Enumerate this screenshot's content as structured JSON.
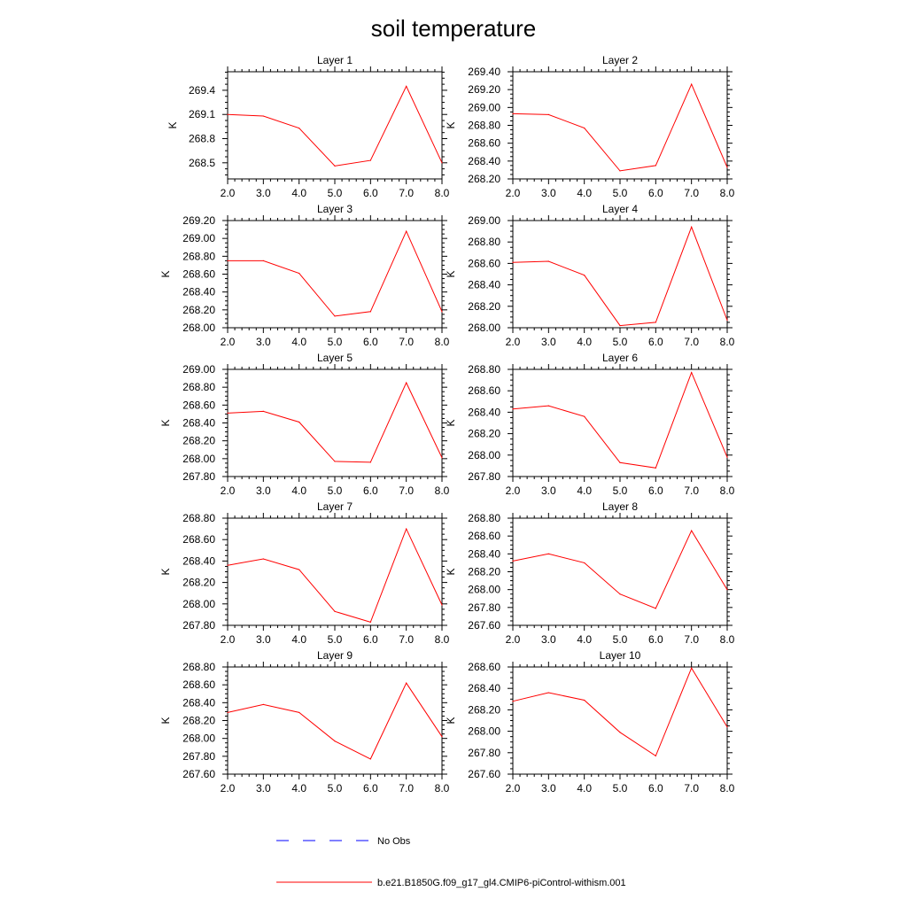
{
  "title": "soil temperature",
  "chart_data": [
    {
      "type": "line",
      "title": "Layer 1",
      "ylabel": "K",
      "xlim": [
        2.0,
        8.0
      ],
      "x_ticks": [
        "2.0",
        "3.0",
        "4.0",
        "5.0",
        "6.0",
        "7.0",
        "8.0"
      ],
      "ylim": [
        268.3,
        269.63
      ],
      "y_ticks": [
        "268.5",
        "268.8",
        "269.1",
        "269.4"
      ],
      "series": [
        {
          "name": "b.e21.B1850G.f09_g17_gl4.CMIP6-piControl-withism.001",
          "color": "#ff0000",
          "x": [
            2,
            3,
            4,
            5,
            6,
            7,
            8
          ],
          "y": [
            269.1,
            269.08,
            268.93,
            268.46,
            268.53,
            269.45,
            268.5
          ]
        }
      ]
    },
    {
      "type": "line",
      "title": "Layer 2",
      "ylabel": "K",
      "xlim": [
        2.0,
        8.0
      ],
      "x_ticks": [
        "2.0",
        "3.0",
        "4.0",
        "5.0",
        "6.0",
        "7.0",
        "8.0"
      ],
      "ylim": [
        268.2,
        269.4
      ],
      "y_ticks": [
        "268.20",
        "268.40",
        "268.60",
        "268.80",
        "269.00",
        "269.20",
        "269.40"
      ],
      "series": [
        {
          "name": "b.e21.B1850G.f09_g17_gl4.CMIP6-piControl-withism.001",
          "color": "#ff0000",
          "x": [
            2,
            3,
            4,
            5,
            6,
            7,
            8
          ],
          "y": [
            268.93,
            268.92,
            268.77,
            268.29,
            268.35,
            269.26,
            268.33
          ]
        }
      ]
    },
    {
      "type": "line",
      "title": "Layer 3",
      "ylabel": "K",
      "xlim": [
        2.0,
        8.0
      ],
      "x_ticks": [
        "2.0",
        "3.0",
        "4.0",
        "5.0",
        "6.0",
        "7.0",
        "8.0"
      ],
      "ylim": [
        268.0,
        269.2
      ],
      "y_ticks": [
        "268.00",
        "268.20",
        "268.40",
        "268.60",
        "268.80",
        "269.00",
        "269.20"
      ],
      "series": [
        {
          "name": "b.e21.B1850G.f09_g17_gl4.CMIP6-piControl-withism.001",
          "color": "#ff0000",
          "x": [
            2,
            3,
            4,
            5,
            6,
            7,
            8
          ],
          "y": [
            268.75,
            268.75,
            268.61,
            268.13,
            268.18,
            269.08,
            268.18
          ]
        }
      ]
    },
    {
      "type": "line",
      "title": "Layer 4",
      "ylabel": "K",
      "xlim": [
        2.0,
        8.0
      ],
      "x_ticks": [
        "2.0",
        "3.0",
        "4.0",
        "5.0",
        "6.0",
        "7.0",
        "8.0"
      ],
      "ylim": [
        268.0,
        269.0
      ],
      "y_ticks": [
        "268.00",
        "268.20",
        "268.40",
        "268.60",
        "268.80",
        "269.00"
      ],
      "series": [
        {
          "name": "b.e21.B1850G.f09_g17_gl4.CMIP6-piControl-withism.001",
          "color": "#ff0000",
          "x": [
            2,
            3,
            4,
            5,
            6,
            7,
            8
          ],
          "y": [
            268.61,
            268.62,
            268.49,
            268.02,
            268.05,
            268.94,
            268.07
          ]
        }
      ]
    },
    {
      "type": "line",
      "title": "Layer 5",
      "ylabel": "K",
      "xlim": [
        2.0,
        8.0
      ],
      "x_ticks": [
        "2.0",
        "3.0",
        "4.0",
        "5.0",
        "6.0",
        "7.0",
        "8.0"
      ],
      "ylim": [
        267.8,
        269.0
      ],
      "y_ticks": [
        "267.80",
        "268.00",
        "268.20",
        "268.40",
        "268.60",
        "268.80",
        "269.00"
      ],
      "series": [
        {
          "name": "b.e21.B1850G.f09_g17_gl4.CMIP6-piControl-withism.001",
          "color": "#ff0000",
          "x": [
            2,
            3,
            4,
            5,
            6,
            7,
            8
          ],
          "y": [
            268.51,
            268.53,
            268.41,
            267.97,
            267.96,
            268.85,
            268.01
          ]
        }
      ]
    },
    {
      "type": "line",
      "title": "Layer 6",
      "ylabel": "K",
      "xlim": [
        2.0,
        8.0
      ],
      "x_ticks": [
        "2.0",
        "3.0",
        "4.0",
        "5.0",
        "6.0",
        "7.0",
        "8.0"
      ],
      "ylim": [
        267.8,
        268.8
      ],
      "y_ticks": [
        "267.80",
        "268.00",
        "268.20",
        "268.40",
        "268.60",
        "268.80"
      ],
      "series": [
        {
          "name": "b.e21.B1850G.f09_g17_gl4.CMIP6-piControl-withism.001",
          "color": "#ff0000",
          "x": [
            2,
            3,
            4,
            5,
            6,
            7,
            8
          ],
          "y": [
            268.43,
            268.46,
            268.36,
            267.93,
            267.88,
            268.77,
            267.98
          ]
        }
      ]
    },
    {
      "type": "line",
      "title": "Layer 7",
      "ylabel": "K",
      "xlim": [
        2.0,
        8.0
      ],
      "x_ticks": [
        "2.0",
        "3.0",
        "4.0",
        "5.0",
        "6.0",
        "7.0",
        "8.0"
      ],
      "ylim": [
        267.8,
        268.8
      ],
      "y_ticks": [
        "267.80",
        "268.00",
        "268.20",
        "268.40",
        "268.60",
        "268.80"
      ],
      "series": [
        {
          "name": "b.e21.B1850G.f09_g17_gl4.CMIP6-piControl-withism.001",
          "color": "#ff0000",
          "x": [
            2,
            3,
            4,
            5,
            6,
            7,
            8
          ],
          "y": [
            268.36,
            268.42,
            268.32,
            267.93,
            267.83,
            268.7,
            267.99
          ]
        }
      ]
    },
    {
      "type": "line",
      "title": "Layer 8",
      "ylabel": "K",
      "xlim": [
        2.0,
        8.0
      ],
      "x_ticks": [
        "2.0",
        "3.0",
        "4.0",
        "5.0",
        "6.0",
        "7.0",
        "8.0"
      ],
      "ylim": [
        267.6,
        268.8
      ],
      "y_ticks": [
        "267.60",
        "267.80",
        "268.00",
        "268.20",
        "268.40",
        "268.60",
        "268.80"
      ],
      "series": [
        {
          "name": "b.e21.B1850G.f09_g17_gl4.CMIP6-piControl-withism.001",
          "color": "#ff0000",
          "x": [
            2,
            3,
            4,
            5,
            6,
            7,
            8
          ],
          "y": [
            268.32,
            268.4,
            268.3,
            267.95,
            267.79,
            268.66,
            268.0
          ]
        }
      ]
    },
    {
      "type": "line",
      "title": "Layer 9",
      "ylabel": "K",
      "xlim": [
        2.0,
        8.0
      ],
      "x_ticks": [
        "2.0",
        "3.0",
        "4.0",
        "5.0",
        "6.0",
        "7.0",
        "8.0"
      ],
      "ylim": [
        267.6,
        268.8
      ],
      "y_ticks": [
        "267.60",
        "267.80",
        "268.00",
        "268.20",
        "268.40",
        "268.60",
        "268.80"
      ],
      "series": [
        {
          "name": "b.e21.B1850G.f09_g17_gl4.CMIP6-piControl-withism.001",
          "color": "#ff0000",
          "x": [
            2,
            3,
            4,
            5,
            6,
            7,
            8
          ],
          "y": [
            268.29,
            268.38,
            268.29,
            267.97,
            267.77,
            268.62,
            268.02
          ]
        }
      ]
    },
    {
      "type": "line",
      "title": "Layer 10",
      "ylabel": "K",
      "xlim": [
        2.0,
        8.0
      ],
      "x_ticks": [
        "2.0",
        "3.0",
        "4.0",
        "5.0",
        "6.0",
        "7.0",
        "8.0"
      ],
      "ylim": [
        267.6,
        268.6
      ],
      "y_ticks": [
        "267.60",
        "267.80",
        "268.00",
        "268.20",
        "268.40",
        "268.60"
      ],
      "series": [
        {
          "name": "b.e21.B1850G.f09_g17_gl4.CMIP6-piControl-withism.001",
          "color": "#ff0000",
          "x": [
            2,
            3,
            4,
            5,
            6,
            7,
            8
          ],
          "y": [
            268.28,
            268.36,
            268.29,
            267.99,
            267.77,
            268.59,
            268.04
          ]
        }
      ]
    }
  ],
  "legend": {
    "items": [
      {
        "label": "No Obs",
        "color": "#0000ff",
        "dashed": true
      },
      {
        "label": "b.e21.B1850G.f09_g17_gl4.CMIP6-piControl-withism.001",
        "color": "#ff0000",
        "dashed": false
      }
    ]
  }
}
